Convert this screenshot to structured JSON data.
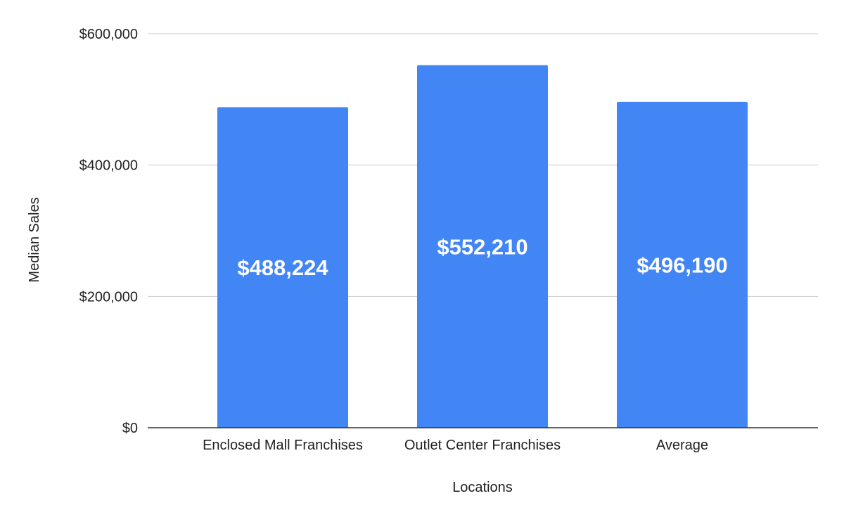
{
  "chart_data": {
    "type": "bar",
    "title": "",
    "xlabel": "Locations",
    "ylabel": "Median Sales",
    "categories": [
      "Enclosed Mall Franchises",
      "Outlet Center Franchises",
      "Average"
    ],
    "values": [
      488224,
      552210,
      496190
    ],
    "data_labels": [
      "$488,224",
      "$552,210",
      "$496,190"
    ],
    "ylim": [
      0,
      600000
    ],
    "yticks": [
      0,
      200000,
      400000,
      600000
    ],
    "ytick_labels": [
      "$0",
      "$200,000",
      "$400,000",
      "$600,000"
    ],
    "grid": true,
    "legend": "none",
    "bar_color": "#4285f4"
  }
}
